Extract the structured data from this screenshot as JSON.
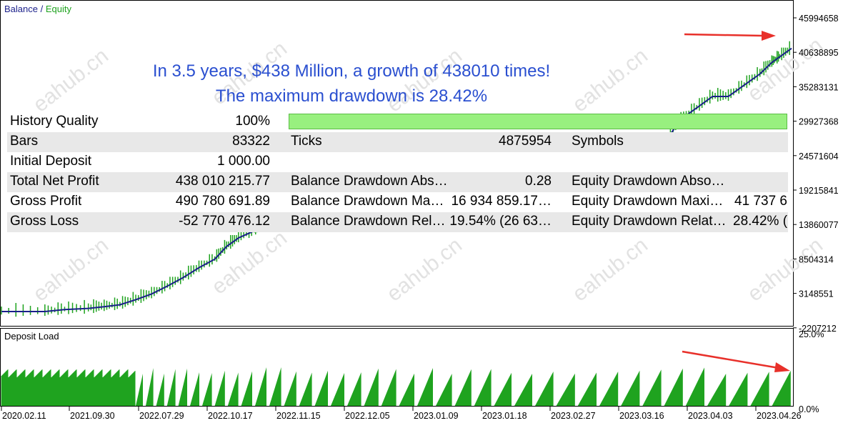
{
  "legend": {
    "balance_label": "Balance",
    "separator": " / ",
    "equity_label": "Equity"
  },
  "colors": {
    "balance_line": "#1a1f8a",
    "equity_line": "#1fa31f",
    "deposit_fill": "#1fa31f",
    "annotation_text": "#2a4fd0",
    "arrow": "#e8302a",
    "quality_bar": "#98f07f"
  },
  "annotation": {
    "line1": "In 3.5 years, $438 Million, a growth of 438010 times!",
    "line2": "The maximum drawdown is 28.42%"
  },
  "watermark": "eahub.cn",
  "main_chart": {
    "y_ticks": [
      "45994658",
      "40638895",
      "35283131",
      "29927368",
      "24571604",
      "19215841",
      "13860077",
      "8504314",
      "3148551",
      "-2207212"
    ],
    "curve_points": [
      [
        0,
        0.0
      ],
      [
        0.055,
        0.0
      ],
      [
        0.08,
        0.007
      ],
      [
        0.11,
        0.011
      ],
      [
        0.13,
        0.017
      ],
      [
        0.15,
        0.024
      ],
      [
        0.17,
        0.042
      ],
      [
        0.19,
        0.062
      ],
      [
        0.21,
        0.09
      ],
      [
        0.23,
        0.12
      ],
      [
        0.25,
        0.155
      ],
      [
        0.27,
        0.185
      ],
      [
        0.285,
        0.23
      ],
      [
        0.3,
        0.26
      ],
      [
        0.32,
        0.285
      ],
      [
        0.33,
        0.31
      ],
      [
        0.34,
        0.33
      ],
      [
        0.35,
        0.38
      ],
      [
        0.36,
        0.42
      ],
      [
        0.37,
        0.46
      ],
      [
        0.84,
        0.6
      ],
      [
        0.86,
        0.68
      ],
      [
        0.88,
        0.72
      ],
      [
        0.9,
        0.76
      ],
      [
        0.92,
        0.76
      ],
      [
        0.94,
        0.8
      ],
      [
        0.96,
        0.84
      ],
      [
        0.975,
        0.88
      ],
      [
        0.985,
        0.9
      ],
      [
        1.0,
        0.93
      ]
    ]
  },
  "deposit_load": {
    "title": "Deposit Load",
    "y_ticks": [
      "25.0%",
      "0.0%"
    ],
    "x_ticks": [
      "2020.02.11",
      "2021.09.30",
      "2022.07.29",
      "2022.10.17",
      "2022.11.15",
      "2022.12.05",
      "2023.01.09",
      "2023.01.18",
      "2023.02.27",
      "2023.03.16",
      "2023.04.03",
      "2023.04.26"
    ]
  },
  "stats": {
    "history_quality_label": "History Quality",
    "history_quality_value": "100%",
    "history_quality_level": 1.0,
    "bars_label": "Bars",
    "bars_value": "83322",
    "ticks_label": "Ticks",
    "ticks_value": "4875954",
    "symbols_label": "Symbols",
    "initial_deposit_label": "Initial Deposit",
    "initial_deposit_value": "1 000.00",
    "total_net_profit_label": "Total Net Profit",
    "total_net_profit_value": "438 010 215.77",
    "balance_dd_abs_label": "Balance Drawdown Abs…",
    "balance_dd_abs_value": "0.28",
    "equity_dd_abs_label": "Equity Drawdown Abso…",
    "gross_profit_label": "Gross Profit",
    "gross_profit_value": "490 780 691.89",
    "balance_dd_max_label": "Balance Drawdown Ma…",
    "balance_dd_max_value": "16 934 859.17…",
    "equity_dd_max_label": "Equity Drawdown Maxi…",
    "equity_dd_max_value": "41 737 6",
    "gross_loss_label": "Gross Loss",
    "gross_loss_value": "-52 770 476.12",
    "balance_dd_rel_label": "Balance Drawdown Rel…",
    "balance_dd_rel_value": "19.54% (26 63…",
    "equity_dd_rel_label": "Equity Drawdown Relat…",
    "equity_dd_rel_value": "28.42% ("
  }
}
